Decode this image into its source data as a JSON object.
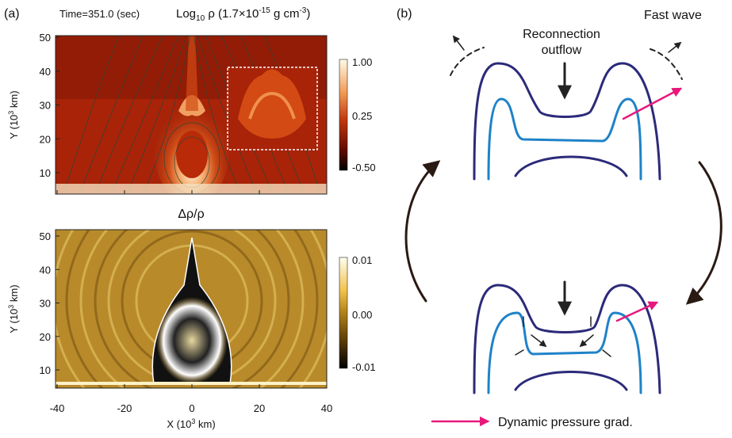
{
  "panel_a": {
    "label": "(a)",
    "time": "Time=351.0 (sec)",
    "title_parts": [
      "Log",
      "10",
      " ρ (1.7×10",
      "-15",
      " g cm",
      "-3",
      ")"
    ],
    "subtitle": "Δρ/ρ",
    "y_label_parts": [
      "Y (10",
      "3",
      " km)"
    ],
    "x_label_parts": [
      "X (10",
      "3",
      " km)"
    ],
    "x_ticks": [
      "-40",
      "-20",
      "0",
      "20",
      "40"
    ],
    "y_ticks": [
      "10",
      "20",
      "30",
      "40",
      "50"
    ],
    "top_colorbar_ticks": [
      "1.00",
      "0.25",
      "-0.50"
    ],
    "bottom_colorbar_ticks": [
      "0.01",
      "0.00",
      "-0.01"
    ]
  },
  "panel_b": {
    "label": "(b)",
    "outflow_parts": [
      "Reconnection",
      "outflow"
    ],
    "fast_wave": "Fast wave",
    "legend": "Dynamic pressure grad."
  }
}
